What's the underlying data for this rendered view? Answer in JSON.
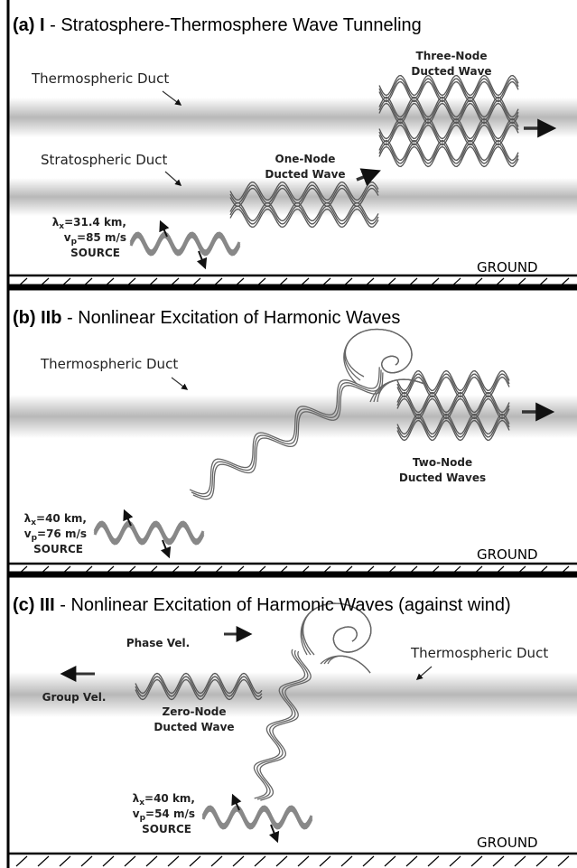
{
  "panels": [
    {
      "label": "(a) I",
      "title": "- Stratosphere-Thermosphere Wave Tunneling",
      "duct_upper": "Thermospheric Duct",
      "duct_lower": "Stratospheric Duct",
      "wave_1": [
        "One-Node",
        "Ducted Wave"
      ],
      "wave_2": [
        "Three-Node",
        "Ducted Wave"
      ],
      "source": {
        "lambda": "λ",
        "lambda_sub": "x",
        "lambda_value": "=31.4 km,",
        "v": "v",
        "v_sub": "p",
        "v_value": "=85 m/s",
        "label": "SOURCE"
      },
      "ground": "GROUND"
    },
    {
      "label": "(b) IIb",
      "title": "- Nonlinear Excitation of Harmonic Waves",
      "duct": "Thermospheric Duct",
      "wave": [
        "Two-Node",
        "Ducted Waves"
      ],
      "source": {
        "lambda": "λ",
        "lambda_sub": "x",
        "lambda_value": "=40 km,",
        "v": "v",
        "v_sub": "p",
        "v_value": "=76 m/s",
        "label": "SOURCE"
      },
      "ground": "GROUND"
    },
    {
      "label": "(c) III",
      "title": "- Nonlinear Excitation of Harmonic Waves (against wind)",
      "phase": "Phase Vel.",
      "duct": "Thermospheric Duct",
      "group": "Group Vel.",
      "wave": [
        "Zero-Node",
        "Ducted Wave"
      ],
      "source": {
        "lambda": "λ",
        "lambda_sub": "x",
        "lambda_value": "=40 km,",
        "v": "v",
        "v_sub": "p",
        "v_value": "=54 m/s",
        "label": "SOURCE"
      },
      "ground": "GROUND"
    }
  ]
}
